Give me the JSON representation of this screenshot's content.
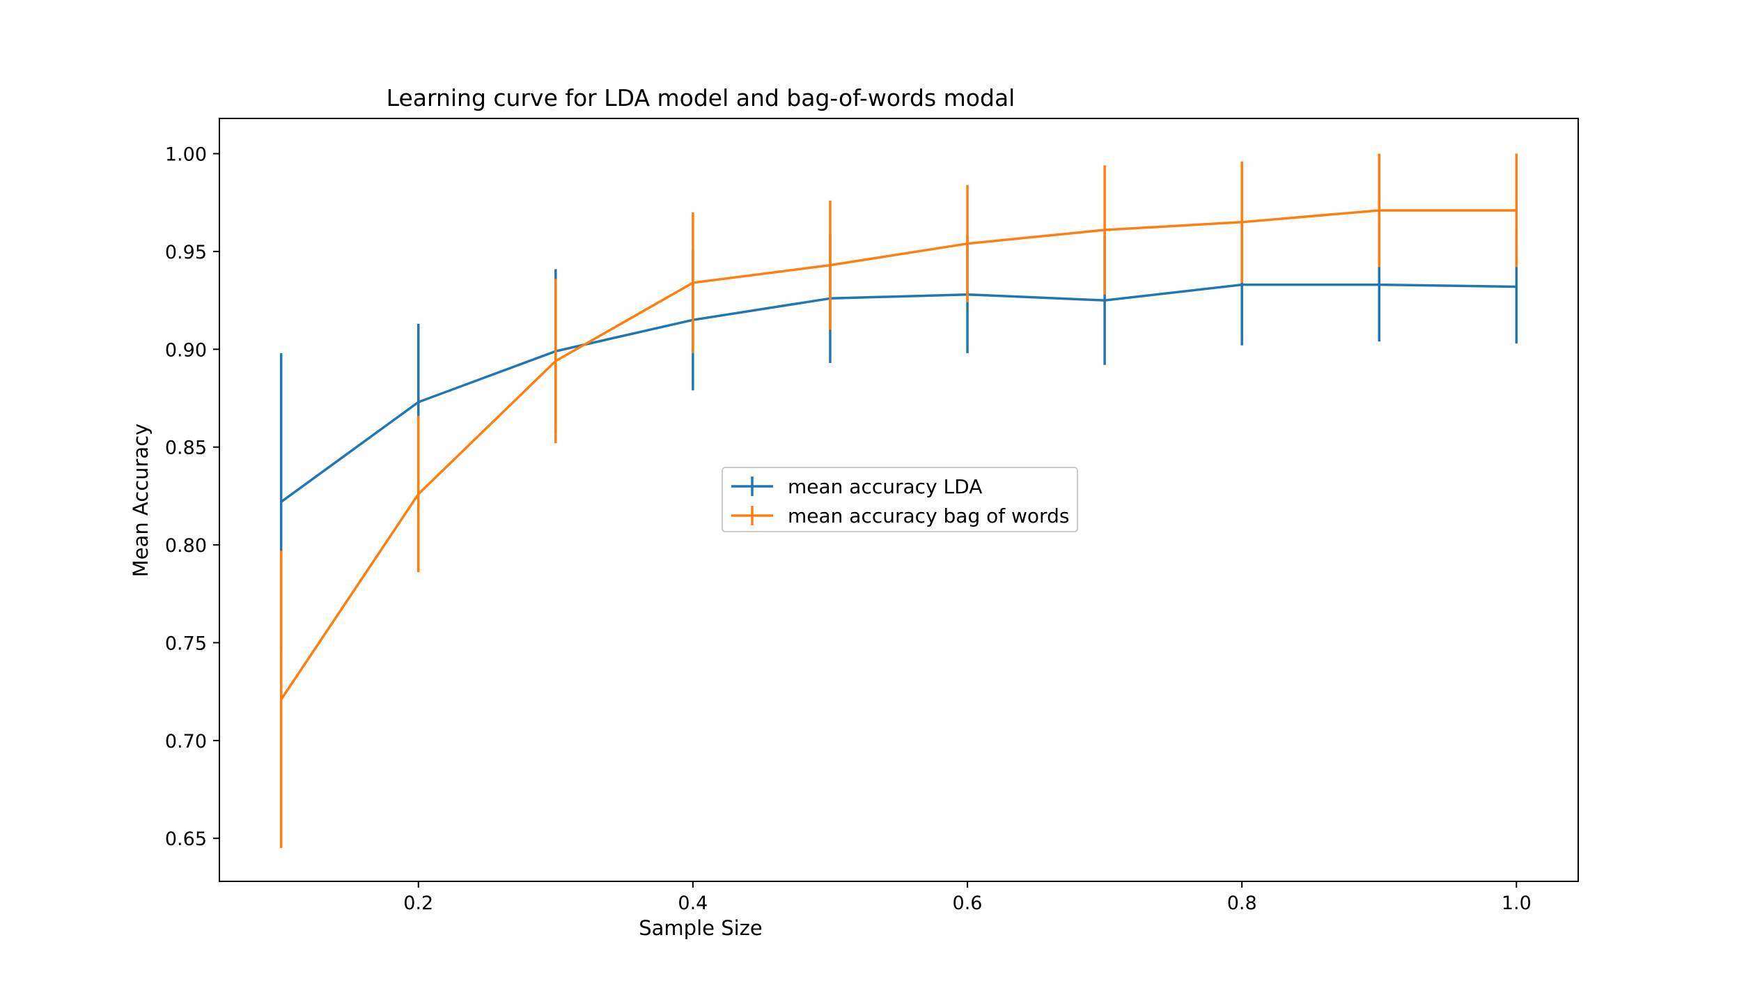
{
  "chart_data": {
    "type": "line",
    "title": "Learning curve for LDA model and bag-of-words modal",
    "xlabel": "Sample Size",
    "ylabel": "Mean Accuracy",
    "xlim": [
      0.055,
      1.045
    ],
    "ylim": [
      0.628,
      1.018
    ],
    "xticks": [
      0.2,
      0.4,
      0.6,
      0.8,
      1.0
    ],
    "xtick_labels": [
      "0.2",
      "0.4",
      "0.6",
      "0.8",
      "1.0"
    ],
    "yticks": [
      0.65,
      0.7,
      0.75,
      0.8,
      0.85,
      0.9,
      0.95,
      1.0
    ],
    "ytick_labels": [
      "0.65",
      "0.70",
      "0.75",
      "0.80",
      "0.85",
      "0.90",
      "0.95",
      "1.00"
    ],
    "x": [
      0.1,
      0.2,
      0.3,
      0.4,
      0.5,
      0.6,
      0.7,
      0.8,
      0.9,
      1.0
    ],
    "series": [
      {
        "name": "mean accuracy LDA",
        "color": "#1f77b4",
        "values": [
          0.822,
          0.873,
          0.899,
          0.915,
          0.926,
          0.928,
          0.925,
          0.933,
          0.933,
          0.932
        ],
        "errors": [
          0.076,
          0.04,
          0.042,
          0.036,
          0.033,
          0.03,
          0.033,
          0.031,
          0.029,
          0.029
        ]
      },
      {
        "name": "mean accuracy bag of words",
        "color": "#ff7f0e",
        "values": [
          0.721,
          0.826,
          0.894,
          0.934,
          0.943,
          0.954,
          0.961,
          0.965,
          0.971,
          0.971
        ],
        "errors": [
          0.076,
          0.04,
          0.042,
          0.036,
          0.033,
          0.03,
          0.033,
          0.031,
          0.029,
          0.029
        ]
      }
    ],
    "grid": false,
    "legend_position": "center"
  }
}
